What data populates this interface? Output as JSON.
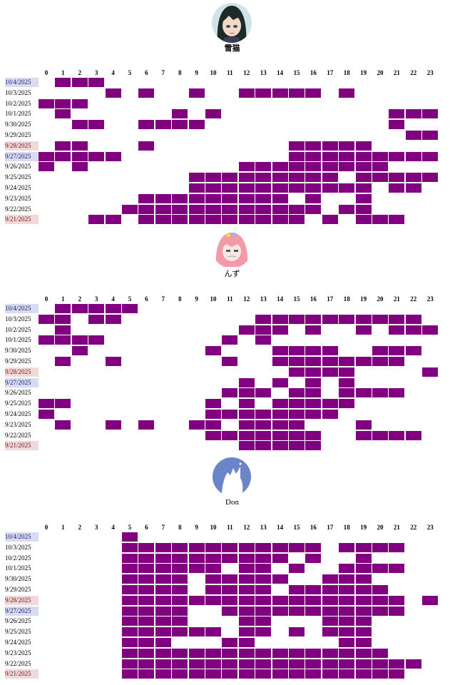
{
  "colors": {
    "active_cell": "#800080",
    "saturday_bg": "#d8dcf2",
    "sunday_bg": "#f2d9d9"
  },
  "hours": [
    "0",
    "1",
    "2",
    "3",
    "4",
    "5",
    "6",
    "7",
    "8",
    "9",
    "10",
    "11",
    "12",
    "13",
    "14",
    "15",
    "16",
    "17",
    "18",
    "19",
    "20",
    "21",
    "22",
    "23"
  ],
  "users": [
    {
      "name": "雪猫",
      "avatar": "anime-girl-avatar",
      "rows": [
        {
          "date": "10/4/2025",
          "day": "sat",
          "active": [
            1,
            2,
            3
          ]
        },
        {
          "date": "10/3/2025",
          "day": "",
          "active": [
            4,
            6,
            9,
            12,
            13,
            14,
            15,
            16,
            18
          ]
        },
        {
          "date": "10/2/2025",
          "day": "",
          "active": [
            0,
            1,
            2
          ]
        },
        {
          "date": "10/1/2025",
          "day": "",
          "active": [
            1,
            8,
            10,
            21,
            22,
            23
          ]
        },
        {
          "date": "9/30/2025",
          "day": "",
          "active": [
            2,
            3,
            6,
            7,
            8,
            9,
            21
          ]
        },
        {
          "date": "9/29/2025",
          "day": "",
          "active": [
            22,
            23
          ]
        },
        {
          "date": "9/28/2025",
          "day": "sun",
          "active": [
            1,
            2,
            6,
            15,
            16,
            17,
            18,
            19
          ]
        },
        {
          "date": "9/27/2025",
          "day": "sat",
          "active": [
            0,
            1,
            2,
            3,
            4,
            15,
            16,
            17,
            18,
            19,
            20,
            21,
            22,
            23
          ]
        },
        {
          "date": "9/26/2025",
          "day": "",
          "active": [
            0,
            2,
            12,
            13,
            14,
            15,
            16,
            17,
            18,
            19,
            20
          ]
        },
        {
          "date": "9/25/2025",
          "day": "",
          "active": [
            9,
            10,
            11,
            12,
            13,
            14,
            15,
            16,
            17,
            19,
            20,
            21,
            22,
            23
          ]
        },
        {
          "date": "9/24/2025",
          "day": "",
          "active": [
            9,
            10,
            11,
            12,
            13,
            14,
            15,
            16,
            17,
            18,
            19,
            21,
            22
          ]
        },
        {
          "date": "9/23/2025",
          "day": "",
          "active": [
            6,
            7,
            8,
            9,
            10,
            11,
            12,
            13,
            14,
            16,
            19
          ]
        },
        {
          "date": "9/22/2025",
          "day": "",
          "active": [
            5,
            6,
            7,
            8,
            9,
            10,
            11,
            12,
            13,
            14,
            15,
            16,
            18,
            19
          ]
        },
        {
          "date": "9/21/2025",
          "day": "sun",
          "active": [
            3,
            4,
            6,
            7,
            8,
            9,
            10,
            11,
            12,
            13,
            14,
            15,
            17,
            19,
            20,
            21
          ]
        }
      ]
    },
    {
      "name": "んず",
      "avatar": "pink-hair-girl-avatar",
      "rows": [
        {
          "date": "10/4/2025",
          "day": "sat",
          "active": [
            1,
            2,
            3,
            4,
            5
          ]
        },
        {
          "date": "10/3/2025",
          "day": "",
          "active": [
            0,
            1,
            3,
            4,
            13,
            14,
            15,
            16,
            17,
            18,
            19,
            20,
            21,
            22
          ]
        },
        {
          "date": "10/2/2025",
          "day": "",
          "active": [
            1,
            12,
            13,
            14,
            16,
            19,
            21,
            22,
            23
          ]
        },
        {
          "date": "10/1/2025",
          "day": "",
          "active": [
            0,
            1,
            2,
            3,
            11,
            13
          ]
        },
        {
          "date": "9/30/2025",
          "day": "",
          "active": [
            2,
            10,
            14,
            15,
            16,
            17,
            20,
            21,
            22
          ]
        },
        {
          "date": "9/29/2025",
          "day": "",
          "active": [
            1,
            4,
            11,
            14,
            15,
            16,
            17,
            18,
            19,
            20,
            21
          ]
        },
        {
          "date": "9/28/2025",
          "day": "sun",
          "active": [
            15,
            16,
            17,
            18,
            23
          ]
        },
        {
          "date": "9/27/2025",
          "day": "sat",
          "active": [
            12,
            14,
            16,
            18
          ]
        },
        {
          "date": "9/26/2025",
          "day": "",
          "active": [
            11,
            12,
            13,
            15,
            16,
            18,
            19,
            20,
            21
          ]
        },
        {
          "date": "9/25/2025",
          "day": "",
          "active": [
            0,
            1,
            10,
            12,
            14,
            15,
            16,
            17,
            18
          ]
        },
        {
          "date": "9/24/2025",
          "day": "",
          "active": [
            0,
            10,
            11,
            12,
            13,
            14,
            15,
            16,
            17
          ]
        },
        {
          "date": "9/23/2025",
          "day": "",
          "active": [
            1,
            4,
            6,
            9,
            10,
            12,
            13,
            14,
            15,
            19
          ]
        },
        {
          "date": "9/22/2025",
          "day": "",
          "active": [
            10,
            11,
            12,
            13,
            14,
            15,
            16,
            19,
            20,
            21,
            22
          ]
        },
        {
          "date": "9/21/2025",
          "day": "sun",
          "active": [
            12,
            13,
            14,
            15,
            16
          ]
        }
      ]
    },
    {
      "name": "Don",
      "avatar": "blue-circle-avatar",
      "rows": [
        {
          "date": "10/4/2025",
          "day": "sat",
          "active": [
            5
          ]
        },
        {
          "date": "10/3/2025",
          "day": "",
          "active": [
            5,
            6,
            7,
            8,
            9,
            10,
            11,
            12,
            13,
            14,
            15,
            16,
            18,
            19,
            20,
            21
          ]
        },
        {
          "date": "10/2/2025",
          "day": "",
          "active": [
            5,
            6,
            7,
            8,
            9,
            10,
            11,
            12,
            13,
            14,
            16,
            19
          ]
        },
        {
          "date": "10/1/2025",
          "day": "",
          "active": [
            5,
            6,
            7,
            8,
            9,
            10,
            12,
            13,
            15,
            18,
            19,
            20,
            21
          ]
        },
        {
          "date": "9/30/2025",
          "day": "",
          "active": [
            5,
            6,
            7,
            8,
            10,
            11,
            12,
            13,
            14,
            17,
            18,
            19
          ]
        },
        {
          "date": "9/29/2025",
          "day": "",
          "active": [
            5,
            6,
            7,
            8,
            10,
            11,
            12,
            13,
            15,
            16,
            17,
            18,
            19,
            20
          ]
        },
        {
          "date": "9/28/2025",
          "day": "sun",
          "active": [
            5,
            6,
            7,
            8,
            9,
            10,
            11,
            12,
            13,
            14,
            15,
            16,
            17,
            18,
            19,
            20,
            21,
            23
          ]
        },
        {
          "date": "9/27/2025",
          "day": "sat",
          "active": [
            5,
            6,
            7,
            8,
            11,
            12,
            13,
            14,
            15,
            16,
            17,
            18,
            19,
            20,
            21
          ]
        },
        {
          "date": "9/26/2025",
          "day": "",
          "active": [
            5,
            6,
            7,
            8,
            12,
            13,
            17,
            18,
            19
          ]
        },
        {
          "date": "9/25/2025",
          "day": "",
          "active": [
            5,
            6,
            7,
            8,
            9,
            10,
            12,
            13,
            15,
            17,
            18,
            19
          ]
        },
        {
          "date": "9/24/2025",
          "day": "",
          "active": [
            5,
            6,
            7,
            11,
            12,
            18,
            19
          ]
        },
        {
          "date": "9/23/2025",
          "day": "",
          "active": [
            5,
            6,
            7,
            8,
            9,
            10,
            11,
            12,
            13,
            14,
            15,
            16,
            17,
            18,
            19,
            20
          ]
        },
        {
          "date": "9/22/2025",
          "day": "",
          "active": [
            5,
            6,
            7,
            8,
            9,
            10,
            11,
            12,
            13,
            14,
            15,
            16,
            17,
            18,
            19,
            20,
            21,
            22
          ]
        },
        {
          "date": "9/21/2025",
          "day": "sun",
          "active": [
            5,
            6,
            7,
            8,
            9,
            10,
            11,
            12,
            13,
            14,
            15,
            16,
            17,
            18,
            19,
            20,
            21
          ]
        }
      ]
    }
  ]
}
